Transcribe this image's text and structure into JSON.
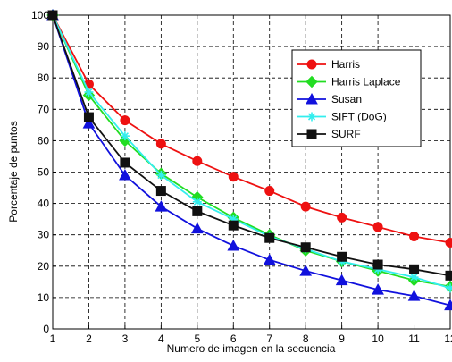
{
  "chart_data": {
    "type": "line",
    "title": "",
    "xlabel": "Numero de imagen en la secuencia",
    "ylabel": "Porcentaje de puntos",
    "xlim": [
      1,
      12
    ],
    "ylim": [
      0,
      100
    ],
    "x": [
      1,
      2,
      3,
      4,
      5,
      6,
      7,
      8,
      9,
      10,
      11,
      12
    ],
    "xticks": [
      "1",
      "2",
      "3",
      "4",
      "5",
      "6",
      "7",
      "8",
      "9",
      "10",
      "11",
      "12"
    ],
    "yticks": [
      "0",
      "10",
      "20",
      "30",
      "40",
      "50",
      "60",
      "70",
      "80",
      "90",
      "100"
    ],
    "grid": "dashed",
    "legend_position": "upper-right",
    "series": [
      {
        "name": "Harris",
        "color": "#ee1111",
        "marker": "circle",
        "values": [
          100,
          78,
          66.5,
          59,
          53.5,
          48.5,
          44,
          39,
          35.5,
          32.5,
          29.5,
          27.5
        ]
      },
      {
        "name": "Harris Laplace",
        "color": "#22dd22",
        "marker": "diamond",
        "values": [
          100,
          74.5,
          60,
          49.5,
          42,
          35.5,
          30,
          25,
          21.5,
          18.5,
          15.5,
          13.5
        ]
      },
      {
        "name": "Susan",
        "color": "#1111dd",
        "marker": "triangle",
        "values": [
          100,
          65.5,
          49,
          39,
          32,
          26.5,
          22,
          18.5,
          15.5,
          12.5,
          10.5,
          7.5
        ]
      },
      {
        "name": "SIFT (DoG)",
        "color": "#33eeee",
        "marker": "star",
        "values": [
          100,
          75.5,
          61.5,
          49,
          40.5,
          35,
          29.5,
          25.5,
          21.5,
          19,
          16.5,
          13
        ]
      },
      {
        "name": "SURF",
        "color": "#111111",
        "marker": "square",
        "values": [
          100,
          67.5,
          53,
          44,
          37.5,
          33,
          29,
          26,
          23,
          20.5,
          19,
          17
        ]
      }
    ]
  }
}
